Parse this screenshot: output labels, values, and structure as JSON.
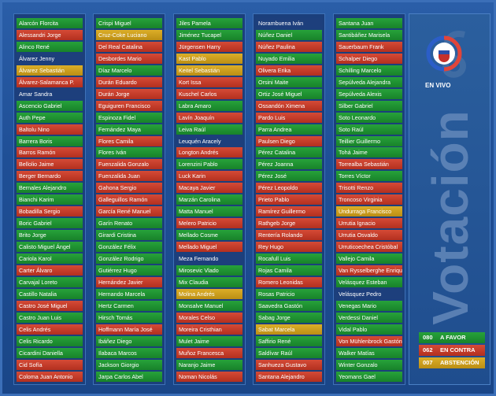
{
  "title": "Votación",
  "live_label": "EN VIVO",
  "colors": {
    "favor": "#1f9232",
    "contra": "#c43c2a",
    "abstencion": "#c99e1e",
    "sin_voto": "#1d3f7c"
  },
  "legend": [
    {
      "count": "080",
      "label": "A FAVOR",
      "vote": "favor"
    },
    {
      "count": "062",
      "label": "EN CONTRA",
      "vote": "contra"
    },
    {
      "count": "007",
      "label": "ABSTENCIÓN",
      "vote": "abst"
    }
  ],
  "columns": [
    [
      {
        "name": "Alarcón Florcita",
        "vote": "favor"
      },
      {
        "name": "Alessandri Jorge",
        "vote": "contra"
      },
      {
        "name": "Alinco René",
        "vote": "favor"
      },
      {
        "name": "Álvarez Jenny",
        "vote": "none"
      },
      {
        "name": "Álvarez Sebastián",
        "vote": "abst"
      },
      {
        "name": "Álvarez-Salamanca P.",
        "vote": "contra"
      },
      {
        "name": "Amar Sandra",
        "vote": "none"
      },
      {
        "name": "Ascencio Gabriel",
        "vote": "favor"
      },
      {
        "name": "Auth Pepe",
        "vote": "favor"
      },
      {
        "name": "Baltolu Nino",
        "vote": "contra"
      },
      {
        "name": "Barrera Boris",
        "vote": "favor"
      },
      {
        "name": "Barros Ramón",
        "vote": "contra"
      },
      {
        "name": "Bellolio Jaime",
        "vote": "contra"
      },
      {
        "name": "Berger Bernardo",
        "vote": "contra"
      },
      {
        "name": "Bernales Alejandro",
        "vote": "favor"
      },
      {
        "name": "Bianchi Karim",
        "vote": "favor"
      },
      {
        "name": "Bobadilla Sergio",
        "vote": "contra"
      },
      {
        "name": "Boric Gabriel",
        "vote": "favor"
      },
      {
        "name": "Brito Jorge",
        "vote": "favor"
      },
      {
        "name": "Calisto Miguel Ángel",
        "vote": "favor"
      },
      {
        "name": "Cariola Karol",
        "vote": "favor"
      },
      {
        "name": "Carter Álvaro",
        "vote": "contra"
      },
      {
        "name": "Carvajal Loreto",
        "vote": "favor"
      },
      {
        "name": "Castillo Natalia",
        "vote": "favor"
      },
      {
        "name": "Castro José Miguel",
        "vote": "contra"
      },
      {
        "name": "Castro Juan Luis",
        "vote": "favor"
      },
      {
        "name": "Celis Andrés",
        "vote": "contra"
      },
      {
        "name": "Celis Ricardo",
        "vote": "favor"
      },
      {
        "name": "Cicardini Daniella",
        "vote": "favor"
      },
      {
        "name": "Cid Sofía",
        "vote": "contra"
      },
      {
        "name": "Coloma Juan Antonio",
        "vote": "contra"
      }
    ],
    [
      {
        "name": "Crispi Miguel",
        "vote": "favor"
      },
      {
        "name": "Cruz-Coke Luciano",
        "vote": "abst"
      },
      {
        "name": "Del Real Catalina",
        "vote": "contra"
      },
      {
        "name": "Desbordes Mario",
        "vote": "contra"
      },
      {
        "name": "Díaz Marcelo",
        "vote": "favor"
      },
      {
        "name": "Durán Eduardo",
        "vote": "contra"
      },
      {
        "name": "Durán Jorge",
        "vote": "contra"
      },
      {
        "name": "Eguiguren Francisco",
        "vote": "contra"
      },
      {
        "name": "Espinoza Fidel",
        "vote": "favor"
      },
      {
        "name": "Fernández Maya",
        "vote": "favor"
      },
      {
        "name": "Flores Camila",
        "vote": "contra"
      },
      {
        "name": "Flores Iván",
        "vote": "favor"
      },
      {
        "name": "Fuenzalida Gonzalo",
        "vote": "contra"
      },
      {
        "name": "Fuenzalida Juan",
        "vote": "contra"
      },
      {
        "name": "Gahona Sergio",
        "vote": "contra"
      },
      {
        "name": "Galleguillos Ramón",
        "vote": "contra"
      },
      {
        "name": "García René Manuel",
        "vote": "contra"
      },
      {
        "name": "Garín Renato",
        "vote": "favor"
      },
      {
        "name": "Girardi Cristina",
        "vote": "favor"
      },
      {
        "name": "González Félix",
        "vote": "favor"
      },
      {
        "name": "González Rodrigo",
        "vote": "favor"
      },
      {
        "name": "Gutiérrez Hugo",
        "vote": "favor"
      },
      {
        "name": "Hernández Javier",
        "vote": "contra"
      },
      {
        "name": "Hernando Marcela",
        "vote": "favor"
      },
      {
        "name": "Hertz Carmen",
        "vote": "favor"
      },
      {
        "name": "Hirsch Tomás",
        "vote": "favor"
      },
      {
        "name": "Hoffmann María José",
        "vote": "contra"
      },
      {
        "name": "Ibáñez Diego",
        "vote": "favor"
      },
      {
        "name": "Ilabaca Marcos",
        "vote": "favor"
      },
      {
        "name": "Jackson Giorgio",
        "vote": "favor"
      },
      {
        "name": "Jarpa Carlos Abel",
        "vote": "favor"
      }
    ],
    [
      {
        "name": "Jiles Pamela",
        "vote": "favor"
      },
      {
        "name": "Jiménez Tucapel",
        "vote": "favor"
      },
      {
        "name": "Jürgensen Harry",
        "vote": "contra"
      },
      {
        "name": "Kast Pablo",
        "vote": "abst"
      },
      {
        "name": "Keitel Sebastián",
        "vote": "abst"
      },
      {
        "name": "Kort Issa",
        "vote": "contra"
      },
      {
        "name": "Kuschel Carlos",
        "vote": "contra"
      },
      {
        "name": "Labra Amaro",
        "vote": "favor"
      },
      {
        "name": "Lavín Joaquín",
        "vote": "contra"
      },
      {
        "name": "Leiva Raúl",
        "vote": "favor"
      },
      {
        "name": "Leuquén Aracely",
        "vote": "none"
      },
      {
        "name": "Longton Andrés",
        "vote": "contra"
      },
      {
        "name": "Lorenzini Pablo",
        "vote": "favor"
      },
      {
        "name": "Luck Karin",
        "vote": "contra"
      },
      {
        "name": "Macaya Javier",
        "vote": "contra"
      },
      {
        "name": "Marzán Carolina",
        "vote": "favor"
      },
      {
        "name": "Matta Manuel",
        "vote": "favor"
      },
      {
        "name": "Melero Patricio",
        "vote": "contra"
      },
      {
        "name": "Mellado Cosme",
        "vote": "favor"
      },
      {
        "name": "Mellado Miguel",
        "vote": "contra"
      },
      {
        "name": "Meza Fernando",
        "vote": "none"
      },
      {
        "name": "Mirosevic Vlado",
        "vote": "favor"
      },
      {
        "name": "Mix Claudia",
        "vote": "favor"
      },
      {
        "name": "Molina Andrés",
        "vote": "abst"
      },
      {
        "name": "Monsalve Manuel",
        "vote": "favor"
      },
      {
        "name": "Morales Celso",
        "vote": "contra"
      },
      {
        "name": "Moreira Cristhian",
        "vote": "contra"
      },
      {
        "name": "Mulet Jaime",
        "vote": "favor"
      },
      {
        "name": "Muñoz Francesca",
        "vote": "contra"
      },
      {
        "name": "Naranjo Jaime",
        "vote": "favor"
      },
      {
        "name": "Noman Nicolás",
        "vote": "contra"
      }
    ],
    [
      {
        "name": "Norambuena Iván",
        "vote": "none"
      },
      {
        "name": "Núñez Daniel",
        "vote": "favor"
      },
      {
        "name": "Núñez Paulina",
        "vote": "contra"
      },
      {
        "name": "Nuyado Emilia",
        "vote": "favor"
      },
      {
        "name": "Olivera Erika",
        "vote": "contra"
      },
      {
        "name": "Orsini Maite",
        "vote": "favor"
      },
      {
        "name": "Ortiz José Miguel",
        "vote": "favor"
      },
      {
        "name": "Ossandón Ximena",
        "vote": "contra"
      },
      {
        "name": "Pardo Luis",
        "vote": "contra"
      },
      {
        "name": "Parra Andrea",
        "vote": "favor"
      },
      {
        "name": "Paulsen Diego",
        "vote": "contra"
      },
      {
        "name": "Pérez Catalina",
        "vote": "favor"
      },
      {
        "name": "Pérez Joanna",
        "vote": "favor"
      },
      {
        "name": "Pérez José",
        "vote": "favor"
      },
      {
        "name": "Pérez Leopoldo",
        "vote": "contra"
      },
      {
        "name": "Prieto Pablo",
        "vote": "contra"
      },
      {
        "name": "Ramírez Guillermo",
        "vote": "contra"
      },
      {
        "name": "Rathgeb Jorge",
        "vote": "contra"
      },
      {
        "name": "Rentería Rolando",
        "vote": "contra"
      },
      {
        "name": "Rey Hugo",
        "vote": "contra"
      },
      {
        "name": "Rocafull Luis",
        "vote": "favor"
      },
      {
        "name": "Rojas Camila",
        "vote": "favor"
      },
      {
        "name": "Romero Leonidas",
        "vote": "contra"
      },
      {
        "name": "Rosas Patricio",
        "vote": "favor"
      },
      {
        "name": "Saavedra Gastón",
        "vote": "favor"
      },
      {
        "name": "Sabag Jorge",
        "vote": "favor"
      },
      {
        "name": "Sabat Marcela",
        "vote": "abst"
      },
      {
        "name": "Saffirio René",
        "vote": "favor"
      },
      {
        "name": "Saldívar Raúl",
        "vote": "favor"
      },
      {
        "name": "Sanhueza Gustavo",
        "vote": "contra"
      },
      {
        "name": "Santana Alejandro",
        "vote": "contra"
      }
    ],
    [
      {
        "name": "Santana Juan",
        "vote": "favor"
      },
      {
        "name": "Santibáñez Marisela",
        "vote": "favor"
      },
      {
        "name": "Sauerbaum Frank",
        "vote": "contra"
      },
      {
        "name": "Schalper Diego",
        "vote": "contra"
      },
      {
        "name": "Schilling Marcelo",
        "vote": "favor"
      },
      {
        "name": "Sepúlveda Alejandra",
        "vote": "favor"
      },
      {
        "name": "Sepúlveda Alexis",
        "vote": "favor"
      },
      {
        "name": "Silber Gabriel",
        "vote": "favor"
      },
      {
        "name": "Soto Leonardo",
        "vote": "favor"
      },
      {
        "name": "Soto Raúl",
        "vote": "favor"
      },
      {
        "name": "Teillier Guillermo",
        "vote": "favor"
      },
      {
        "name": "Tohá Jaime",
        "vote": "favor"
      },
      {
        "name": "Torrealba Sebastián",
        "vote": "contra"
      },
      {
        "name": "Torres Víctor",
        "vote": "favor"
      },
      {
        "name": "Trisotti Renzo",
        "vote": "contra"
      },
      {
        "name": "Troncoso Virginia",
        "vote": "contra"
      },
      {
        "name": "Undurraga Francisco",
        "vote": "abst"
      },
      {
        "name": "Urrutia Ignacio",
        "vote": "contra"
      },
      {
        "name": "Urrutia Osvaldo",
        "vote": "contra"
      },
      {
        "name": "Urruticoechea Cristóbal",
        "vote": "contra"
      },
      {
        "name": "Vallejo Camila",
        "vote": "favor"
      },
      {
        "name": "Van Rysselberghe Enrique",
        "vote": "contra"
      },
      {
        "name": "Velásquez Esteban",
        "vote": "favor"
      },
      {
        "name": "Velásquez Pedro",
        "vote": "none"
      },
      {
        "name": "Venegas Mario",
        "vote": "favor"
      },
      {
        "name": "Verdessi Daniel",
        "vote": "favor"
      },
      {
        "name": "Vidal Pablo",
        "vote": "favor"
      },
      {
        "name": "Von Mühlenbrock Gastón",
        "vote": "contra"
      },
      {
        "name": "Walker Matías",
        "vote": "favor"
      },
      {
        "name": "Winter Gonzalo",
        "vote": "favor"
      },
      {
        "name": "Yeomans Gael",
        "vote": "favor"
      }
    ]
  ]
}
